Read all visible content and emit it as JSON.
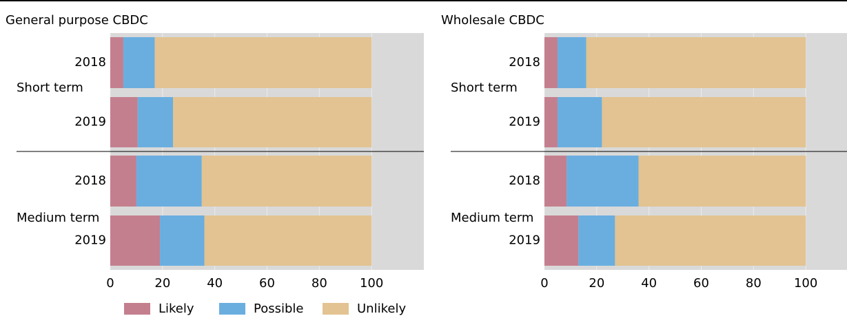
{
  "chart_data": [
    {
      "type": "bar",
      "orientation": "horizontal",
      "stacked": true,
      "title": "General purpose CBDC",
      "categories": [
        "2018",
        "2019",
        "2018",
        "2019"
      ],
      "groups": [
        "Short term",
        "Medium term"
      ],
      "series": [
        {
          "name": "Likely",
          "color": "#c47f8e",
          "values": [
            5,
            10.5,
            10,
            19
          ]
        },
        {
          "name": "Possible",
          "color": "#6aaee0",
          "values": [
            12,
            13.5,
            25,
            17
          ]
        },
        {
          "name": "Unlikely",
          "color": "#e2c391",
          "values": [
            83,
            76,
            65,
            64
          ]
        }
      ],
      "xlim": [
        0,
        120
      ],
      "xticks": [
        0,
        20,
        40,
        60,
        80,
        100
      ],
      "grid": true
    },
    {
      "type": "bar",
      "orientation": "horizontal",
      "stacked": true,
      "title": "Wholesale CBDC",
      "categories": [
        "2018",
        "2019",
        "2018",
        "2019"
      ],
      "groups": [
        "Short term",
        "Medium term"
      ],
      "series": [
        {
          "color": "#c47f8e",
          "values": [
            5,
            5,
            8.5,
            13
          ]
        },
        {
          "color": "#6aaee0",
          "values": [
            11,
            17,
            27.5,
            14
          ]
        },
        {
          "color": "#e2c391",
          "values": [
            84,
            78,
            64,
            73
          ]
        }
      ],
      "xlim": [
        0,
        120
      ],
      "xticks": [
        0,
        20,
        40,
        60,
        80,
        100
      ],
      "grid": true
    }
  ]
}
